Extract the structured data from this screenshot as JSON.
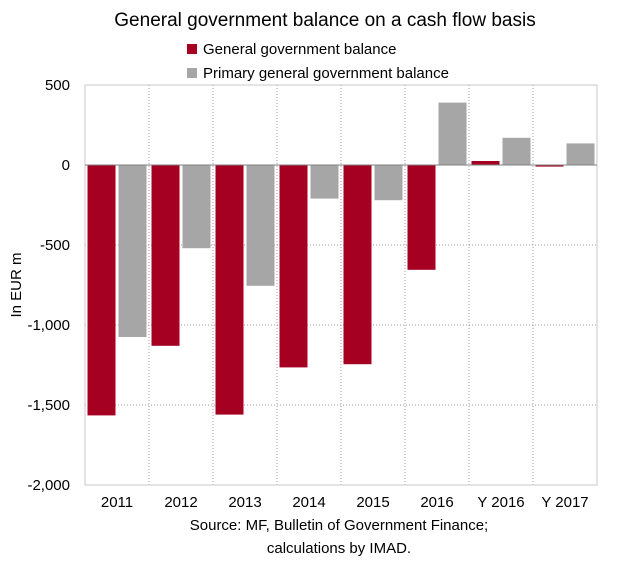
{
  "chart_data": {
    "type": "bar",
    "title": "General government balance on a cash flow basis",
    "xlabel": "",
    "ylabel": "In EUR m",
    "categories": [
      "2011",
      "2012",
      "2013",
      "2014",
      "2015",
      "2016",
      "Y 2016",
      "Y 2017"
    ],
    "series": [
      {
        "name": "General government balance",
        "color": "#A50021",
        "values": [
          -1565,
          -1130,
          -1560,
          -1265,
          -1245,
          -655,
          25,
          -10
        ]
      },
      {
        "name": "Primary general government balance",
        "color": "#A6A6A6",
        "values": [
          -1075,
          -520,
          -755,
          -210,
          -220,
          390,
          170,
          135
        ]
      }
    ],
    "ylim": [
      -2000,
      500
    ],
    "yticks": [
      500,
      0,
      -500,
      -1000,
      -1500,
      -2000
    ],
    "ytick_labels": [
      "500",
      "0",
      "-500",
      "-1,000",
      "-1,500",
      "-2,000"
    ],
    "grid": "dotted",
    "legend_position": "top",
    "source": [
      "Source: MF, Bulletin of Government Finance;",
      "calculations by IMAD."
    ]
  }
}
